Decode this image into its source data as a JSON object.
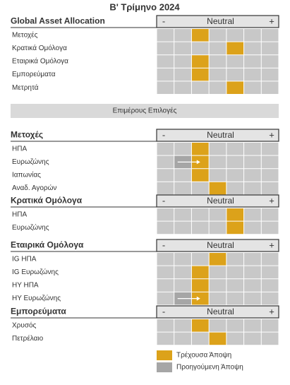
{
  "title": "Β' Τρίμηνο 2024",
  "subheading": "Επιμέρους Επιλογές",
  "sections": [
    {
      "title": "Global Asset Allocation",
      "scale": [
        "-",
        "Neutral",
        "+"
      ],
      "rows": [
        {
          "label": "Μετοχές",
          "current": 2
        },
        {
          "label": "Κρατικά Ομόλογα",
          "current": 4
        },
        {
          "label": "Εταιρικά Ομόλογα",
          "current": 2
        },
        {
          "label": "Εμπορεύματα",
          "current": 2
        },
        {
          "label": "Μετρητά",
          "current": 4
        }
      ]
    },
    {
      "title": "Μετοχές",
      "scale": [
        "-",
        "Neutral",
        "+"
      ],
      "rows": [
        {
          "label": "ΗΠΑ",
          "current": 2
        },
        {
          "label": "Ευρωζώνης",
          "current": 2,
          "previous": 1
        },
        {
          "label": "Ιαπωνίας",
          "current": 2
        },
        {
          "label": "Αναδ. Αγορών",
          "current": 3
        }
      ]
    },
    {
      "title": "Κρατικά Ομόλογα",
      "scale": [
        "-",
        "Neutral",
        "+"
      ],
      "rows": [
        {
          "label": "ΗΠΑ",
          "current": 4
        },
        {
          "label": "Ευρωζώνης",
          "current": 4
        }
      ]
    },
    {
      "title": "Εταιρικά Ομόλογα",
      "scale": [
        "-",
        "Neutral",
        "+"
      ],
      "rows": [
        {
          "label": "IG ΗΠΑ",
          "current": 3
        },
        {
          "label": "IG Ευρωζώνης",
          "current": 2
        },
        {
          "label": "HY ΗΠΑ",
          "current": 2
        },
        {
          "label": "HY Ευρωζώνης",
          "current": 2,
          "previous": 1
        }
      ]
    },
    {
      "title": "Εμπορεύματα",
      "scale": [
        "-",
        "Neutral",
        "+"
      ],
      "rows": [
        {
          "label": "Χρυσός",
          "current": 2
        },
        {
          "label": "Πετρέλαιο",
          "current": 3
        }
      ]
    }
  ],
  "legend": {
    "current": "Τρέχουσα Άποψη",
    "previous": "Προηγούμενη Άποψη"
  }
}
